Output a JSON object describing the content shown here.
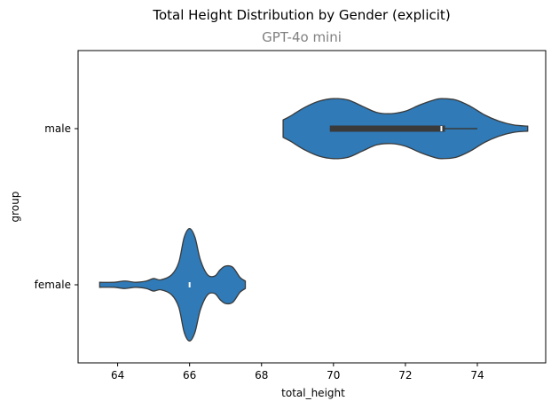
{
  "title": "Total Height Distribution by Gender (explicit)",
  "subtitle": "GPT-4o mini",
  "chart_data": {
    "type": "violin",
    "orientation": "horizontal",
    "xlabel": "total_height",
    "ylabel": "group",
    "xlim": [
      62.9,
      75.9
    ],
    "x_ticks": [
      64,
      66,
      68,
      70,
      72,
      74
    ],
    "categories": [
      "male",
      "female"
    ],
    "grid": false,
    "color": "#2f7ab7",
    "edge_color": "#3a3a3a",
    "series": [
      {
        "name": "male",
        "profile": [
          [
            68.6,
            0.07
          ],
          [
            68.8,
            0.1
          ],
          [
            69.2,
            0.17
          ],
          [
            69.6,
            0.22
          ],
          [
            70.0,
            0.24
          ],
          [
            70.4,
            0.23
          ],
          [
            70.8,
            0.18
          ],
          [
            71.2,
            0.13
          ],
          [
            71.6,
            0.12
          ],
          [
            72.0,
            0.14
          ],
          [
            72.4,
            0.19
          ],
          [
            72.8,
            0.23
          ],
          [
            73.0,
            0.24
          ],
          [
            73.4,
            0.23
          ],
          [
            73.8,
            0.18
          ],
          [
            74.2,
            0.11
          ],
          [
            74.6,
            0.06
          ],
          [
            75.0,
            0.03
          ],
          [
            75.4,
            0.02
          ]
        ],
        "q1": 69.9,
        "median": 73.0,
        "q3": 73.1,
        "whisker_low": 69.9,
        "whisker_high": 74.0
      },
      {
        "name": "female",
        "profile": [
          [
            63.5,
            0.02
          ],
          [
            63.9,
            0.02
          ],
          [
            64.2,
            0.03
          ],
          [
            64.5,
            0.02
          ],
          [
            64.8,
            0.03
          ],
          [
            65.0,
            0.05
          ],
          [
            65.2,
            0.04
          ],
          [
            65.5,
            0.08
          ],
          [
            65.7,
            0.18
          ],
          [
            65.85,
            0.38
          ],
          [
            66.0,
            0.45
          ],
          [
            66.15,
            0.38
          ],
          [
            66.3,
            0.2
          ],
          [
            66.5,
            0.08
          ],
          [
            66.7,
            0.07
          ],
          [
            66.85,
            0.12
          ],
          [
            67.0,
            0.15
          ],
          [
            67.2,
            0.14
          ],
          [
            67.4,
            0.06
          ],
          [
            67.55,
            0.03
          ]
        ],
        "q1": 66.0,
        "median": 66.0,
        "q3": 66.0,
        "whisker_low": 66.0,
        "whisker_high": 66.0
      }
    ]
  }
}
